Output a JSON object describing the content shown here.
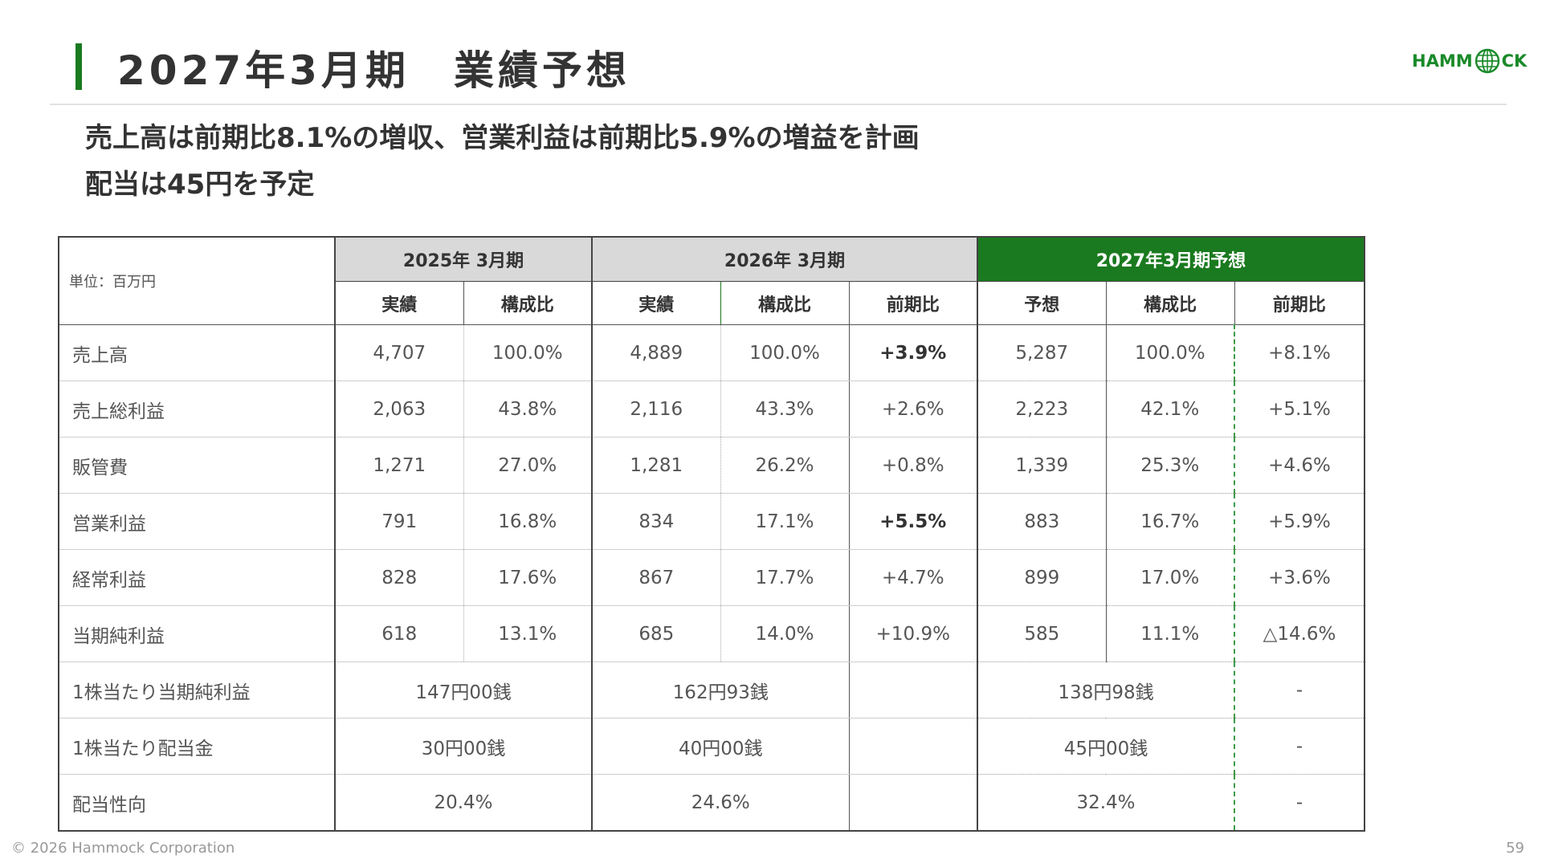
{
  "title": "2027年3月期　業績予想",
  "logo": {
    "text_left": "HAMM",
    "text_right": "CK",
    "icon": "globe-icon",
    "color": "#1a8a2a"
  },
  "subtitle_lines": [
    "売上高は前期比8.1%の増収、営業利益は前期比5.9%の増益を計画",
    "配当は45円を予定"
  ],
  "accent_color": "#1a7a1f",
  "table": {
    "unit_label": "単位：百万円",
    "groups": [
      "2025年 3月期",
      "2026年 3月期",
      "2027年3月期予想"
    ],
    "subheaders": {
      "fy2025": [
        "実績",
        "構成比"
      ],
      "fy2026": [
        "実績",
        "構成比",
        "前期比"
      ],
      "fy2027": [
        "予想",
        "構成比",
        "前期比"
      ]
    },
    "rows": [
      {
        "label": "売上高",
        "v25": "4,707",
        "r25": "100.0%",
        "v26": "4,889",
        "r26": "100.0%",
        "y26": "+3.9%",
        "v27": "5,287",
        "r27": "100.0%",
        "y27": "+8.1%"
      },
      {
        "label": "売上総利益",
        "v25": "2,063",
        "r25": "43.8%",
        "v26": "2,116",
        "r26": "43.3%",
        "y26": "+2.6%",
        "v27": "2,223",
        "r27": "42.1%",
        "y27": "+5.1%"
      },
      {
        "label": "販管費",
        "v25": "1,271",
        "r25": "27.0%",
        "v26": "1,281",
        "r26": "26.2%",
        "y26": "+0.8%",
        "v27": "1,339",
        "r27": "25.3%",
        "y27": "+4.6%"
      },
      {
        "label": "営業利益",
        "v25": "791",
        "r25": "16.8%",
        "v26": "834",
        "r26": "17.1%",
        "y26": "+5.5%",
        "v27": "883",
        "r27": "16.7%",
        "y27": "+5.9%"
      },
      {
        "label": "経常利益",
        "v25": "828",
        "r25": "17.6%",
        "v26": "867",
        "r26": "17.7%",
        "y26": "+4.7%",
        "v27": "899",
        "r27": "17.0%",
        "y27": "+3.6%"
      },
      {
        "label": "当期純利益",
        "v25": "618",
        "r25": "13.1%",
        "v26": "685",
        "r26": "14.0%",
        "y26": "+10.9%",
        "v27": "585",
        "r27": "11.1%",
        "y27": "△14.6%"
      }
    ],
    "per_share_rows": [
      {
        "label": "1株当たり当期純利益",
        "fy25": "147円00銭",
        "fy26": "162円93銭",
        "fy26_yoy": "",
        "fy27": "138円98銭",
        "fy27_yoy": "-"
      },
      {
        "label": "1株当たり配当金",
        "fy25": "30円00銭",
        "fy26": "40円00銭",
        "fy26_yoy": "",
        "fy27": "45円00銭",
        "fy27_yoy": "-"
      },
      {
        "label": "配当性向",
        "fy25": "20.4%",
        "fy26": "24.6%",
        "fy26_yoy": "",
        "fy27": "32.4%",
        "fy27_yoy": "-"
      }
    ]
  },
  "footer": {
    "copyright": "© 2026 Hammock Corporation",
    "page_number": "59"
  }
}
